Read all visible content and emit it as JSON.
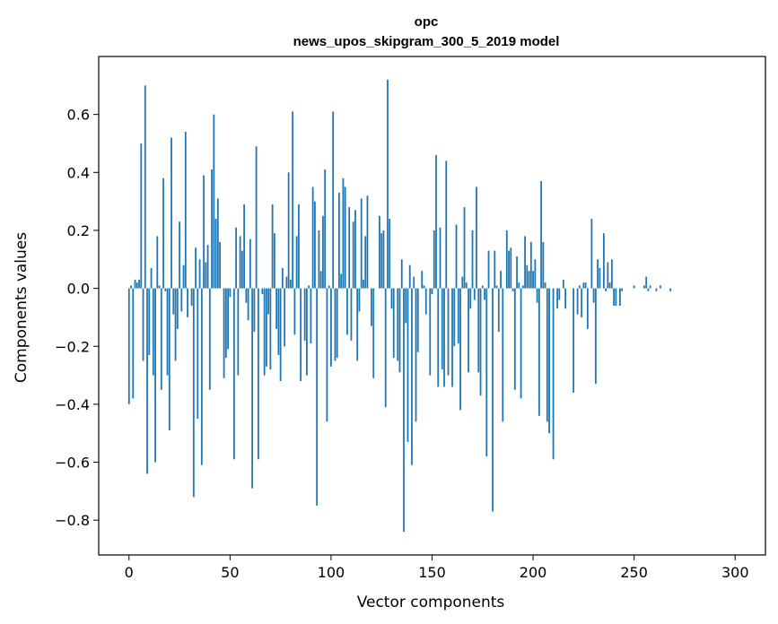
{
  "chart_data": {
    "type": "bar",
    "title": "opc",
    "subtitle": "news_upos_skipgram_300_5_2019 model",
    "xlabel": "Vector components",
    "ylabel": "Components values",
    "xlim": [
      -15,
      315
    ],
    "ylim": [
      -0.92,
      0.8
    ],
    "xticks": [
      0,
      50,
      100,
      150,
      200,
      250,
      300
    ],
    "xtick_labels": [
      "0",
      "50",
      "100",
      "150",
      "200",
      "250",
      "300"
    ],
    "yticks": [
      -0.8,
      -0.6,
      -0.4,
      -0.2,
      0.0,
      0.2,
      0.4,
      0.6
    ],
    "ytick_labels": [
      "−0.8",
      "−0.6",
      "−0.4",
      "−0.2",
      "0.0",
      "0.2",
      "0.4",
      "0.6"
    ],
    "bar_color": "#1f77b4",
    "grid": false,
    "values": [
      -0.4,
      0.01,
      -0.38,
      0.03,
      0.02,
      0.03,
      0.5,
      -0.25,
      0.7,
      -0.64,
      -0.23,
      0.07,
      -0.3,
      -0.6,
      0.18,
      0.01,
      -0.35,
      0.38,
      -0.01,
      -0.3,
      -0.49,
      0.52,
      -0.09,
      -0.25,
      -0.14,
      0.23,
      -0.08,
      0.08,
      0.54,
      -0.1,
      0.0,
      -0.06,
      -0.72,
      0.14,
      -0.45,
      0.1,
      -0.61,
      0.39,
      0.09,
      0.15,
      -0.35,
      0.41,
      0.6,
      0.24,
      0.31,
      0.16,
      0.0,
      -0.31,
      -0.24,
      -0.21,
      -0.03,
      0.0,
      -0.59,
      0.21,
      -0.3,
      0.18,
      0.13,
      0.29,
      -0.05,
      -0.11,
      0.17,
      -0.69,
      -0.15,
      0.49,
      -0.59,
      0.0,
      -0.02,
      -0.3,
      -0.27,
      -0.09,
      -0.28,
      0.29,
      0.19,
      -0.14,
      -0.23,
      -0.32,
      0.07,
      -0.2,
      0.04,
      0.4,
      0.03,
      0.61,
      -0.16,
      0.18,
      0.29,
      -0.32,
      0.0,
      -0.18,
      -0.3,
      0.01,
      -0.19,
      0.35,
      0.3,
      -0.75,
      0.2,
      0.06,
      0.25,
      0.41,
      -0.46,
      0.01,
      -0.27,
      0.61,
      -0.25,
      -0.24,
      0.33,
      0.05,
      0.38,
      0.35,
      -0.16,
      0.28,
      -0.18,
      0.23,
      0.27,
      -0.25,
      -0.08,
      0.31,
      0.03,
      0.18,
      0.32,
      0.0,
      -0.13,
      -0.31,
      0.0,
      0.0,
      0.25,
      0.19,
      0.2,
      -0.41,
      0.72,
      0.24,
      -0.07,
      -0.24,
      0.0,
      -0.25,
      -0.29,
      0.1,
      -0.84,
      -0.12,
      -0.53,
      0.08,
      -0.61,
      0.04,
      -0.46,
      -0.22,
      0.0,
      0.06,
      0.01,
      -0.09,
      0.0,
      -0.3,
      -0.02,
      0.2,
      0.46,
      -0.34,
      0.21,
      -0.28,
      -0.34,
      0.44,
      -0.3,
      0.0,
      -0.34,
      -0.2,
      0.22,
      -0.19,
      -0.42,
      0.04,
      0.28,
      0.02,
      -0.29,
      -0.07,
      0.2,
      -0.04,
      0.35,
      -0.29,
      -0.37,
      0.01,
      -0.04,
      -0.58,
      0.13,
      0.0,
      -0.77,
      0.13,
      0.01,
      -0.15,
      0.06,
      -0.46,
      0.0,
      0.2,
      0.13,
      0.14,
      -0.01,
      -0.35,
      0.11,
      0.02,
      -0.38,
      0.01,
      0.18,
      0.08,
      0.06,
      0.16,
      0.06,
      0.1,
      -0.05,
      -0.44,
      0.37,
      0.16,
      0.02,
      -0.46,
      -0.5,
      0.0,
      -0.59,
      0.0,
      -0.07,
      -0.04,
      0.0,
      0.03,
      -0.07,
      0.0,
      0.0,
      0.0,
      -0.36,
      0.0,
      -0.09,
      0.01,
      -0.1,
      0.02,
      0.02,
      -0.14,
      0.0,
      0.24,
      -0.05,
      -0.33,
      0.1,
      0.07,
      0.0,
      0.19,
      -0.01,
      0.09,
      0.02,
      0.1,
      -0.06,
      -0.06,
      0.0,
      -0.06,
      -0.01,
      0.0,
      0.0,
      0.0,
      0.0,
      0.0,
      0.01,
      0.0,
      0.0,
      0.0,
      0.0,
      0.01,
      0.04,
      -0.01,
      0.01,
      0.0,
      0.0,
      -0.01,
      0.0,
      0.01,
      0.0,
      0.0,
      0.0,
      0.0,
      -0.01,
      0.0,
      0.0,
      0.0,
      0.0,
      0.0,
      0.0,
      0.0,
      0.0,
      0.0,
      0.0,
      0.0,
      0.0,
      0.0,
      0.0,
      0.0,
      0.0,
      0.0,
      0.0,
      0.0,
      0.0,
      0.0,
      0.0,
      0.0,
      0.0,
      0.0,
      0.0,
      0.0,
      0.0,
      0.0,
      0.0,
      0.0,
      0.0,
      0.0,
      0.0,
      0.0,
      0.0,
      0.0,
      0.0,
      0.0,
      0.0,
      0.0,
      0.0
    ]
  }
}
